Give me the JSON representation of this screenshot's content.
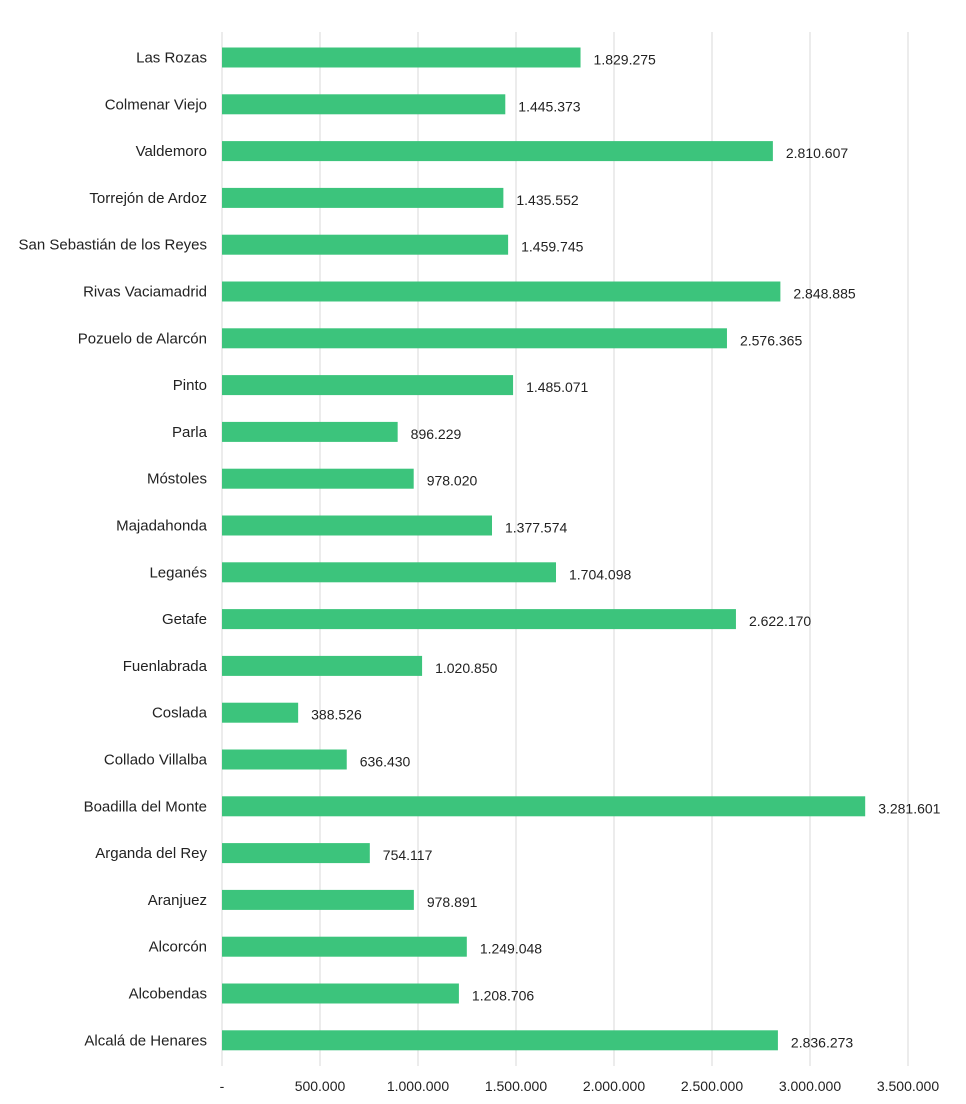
{
  "chart_data": {
    "type": "bar",
    "orientation": "horizontal",
    "title": "",
    "xlabel": "",
    "ylabel": "",
    "bar_color": "#3cc47c",
    "grid": true,
    "xlim": [
      0,
      3500000
    ],
    "x_ticks": [
      0,
      500000,
      1000000,
      1500000,
      2000000,
      2500000,
      3000000,
      3500000
    ],
    "x_tick_labels": [
      "-",
      "500.000",
      "1.000.000",
      "1.500.000",
      "2.000.000",
      "2.500.000",
      "3.000.000",
      "3.500.000"
    ],
    "categories": [
      "Las Rozas",
      "Colmenar Viejo",
      "Valdemoro",
      "Torrejón de Ardoz",
      "San Sebastián de los Reyes",
      "Rivas Vaciamadrid",
      "Pozuelo de Alarcón",
      "Pinto",
      "Parla",
      "Móstoles",
      "Majadahonda",
      "Leganés",
      "Getafe",
      "Fuenlabrada",
      "Coslada",
      "Collado Villalba",
      "Boadilla del Monte",
      "Arganda del Rey",
      "Aranjuez",
      "Alcorcón",
      "Alcobendas",
      "Alcalá de Henares"
    ],
    "values": [
      1829275,
      1445373,
      2810607,
      1435552,
      1459745,
      2848885,
      2576365,
      1485071,
      896229,
      978020,
      1377574,
      1704098,
      2622170,
      1020850,
      388526,
      636430,
      3281601,
      754117,
      978891,
      1249048,
      1208706,
      2836273
    ],
    "value_labels": [
      "1.829.275",
      "1.445.373",
      "2.810.607",
      "1.435.552",
      "1.459.745",
      "2.848.885",
      "2.576.365",
      "1.485.071",
      "896.229",
      "978.020",
      "1.377.574",
      "1.704.098",
      "2.622.170",
      "1.020.850",
      "388.526",
      "636.430",
      "3.281.601",
      "754.117",
      "978.891",
      "1.249.048",
      "1.208.706",
      "2.836.273"
    ]
  }
}
